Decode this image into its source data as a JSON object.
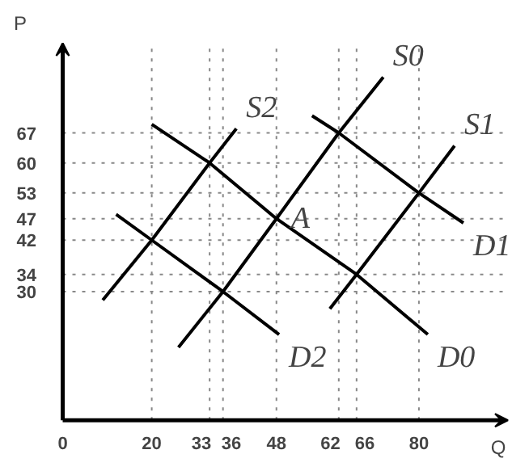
{
  "chart_data": {
    "type": "line",
    "xlabel": "Q",
    "ylabel": "P",
    "series": [
      {
        "name": "S0",
        "color": "#000000",
        "x": [
          26,
          36,
          48,
          62,
          72
        ],
        "values": [
          17,
          30,
          47,
          67,
          80
        ]
      },
      {
        "name": "S1",
        "color": "#000000",
        "x": [
          60,
          66,
          80,
          88
        ],
        "values": [
          26,
          34,
          53,
          64
        ]
      },
      {
        "name": "S2",
        "color": "#000000",
        "x": [
          9,
          20,
          33,
          39
        ],
        "values": [
          28,
          42,
          60,
          68
        ]
      },
      {
        "name": "D0",
        "color": "#000000",
        "x": [
          20,
          33,
          48,
          66,
          82
        ],
        "values": [
          69,
          60,
          47,
          34,
          20
        ]
      },
      {
        "name": "D1",
        "color": "#000000",
        "x": [
          56,
          62,
          80,
          90
        ],
        "values": [
          71,
          67,
          53,
          46
        ]
      },
      {
        "name": "D2",
        "color": "#000000",
        "x": [
          12,
          20,
          36,
          48.6
        ],
        "values": [
          48,
          42,
          30,
          20
        ]
      }
    ],
    "annotations": [
      {
        "text": "A",
        "x": 48,
        "y": 47
      }
    ],
    "xlim": [
      0,
      100
    ],
    "ylim": [
      0,
      88
    ],
    "xticks": [
      0,
      20,
      33,
      36,
      48,
      62,
      66,
      80
    ],
    "yticks": [
      30,
      34,
      42,
      47,
      53,
      60,
      67
    ],
    "ref_lines": [
      {
        "axis": "x",
        "value": 20,
        "color": "#888888",
        "line_style": "dotted"
      },
      {
        "axis": "x",
        "value": 33,
        "color": "#888888",
        "line_style": "dotted"
      },
      {
        "axis": "x",
        "value": 36,
        "color": "#888888",
        "line_style": "dotted"
      },
      {
        "axis": "x",
        "value": 48,
        "color": "#888888",
        "line_style": "dotted"
      },
      {
        "axis": "x",
        "value": 62,
        "color": "#888888",
        "line_style": "dotted"
      },
      {
        "axis": "x",
        "value": 66,
        "color": "#888888",
        "line_style": "dotted"
      },
      {
        "axis": "x",
        "value": 80,
        "color": "#888888",
        "line_style": "dotted"
      },
      {
        "axis": "y",
        "value": 30,
        "color": "#888888",
        "line_style": "dotted"
      },
      {
        "axis": "y",
        "value": 34,
        "color": "#888888",
        "line_style": "dotted"
      },
      {
        "axis": "y",
        "value": 42,
        "color": "#888888",
        "line_style": "dotted"
      },
      {
        "axis": "y",
        "value": 47,
        "color": "#888888",
        "line_style": "dotted"
      },
      {
        "axis": "y",
        "value": 53,
        "color": "#888888",
        "line_style": "dotted"
      },
      {
        "axis": "y",
        "value": 60,
        "color": "#888888",
        "line_style": "dotted"
      },
      {
        "axis": "y",
        "value": 67,
        "color": "#888888",
        "line_style": "dotted"
      }
    ],
    "grid": false,
    "marker": "none",
    "line_style": "solid"
  }
}
